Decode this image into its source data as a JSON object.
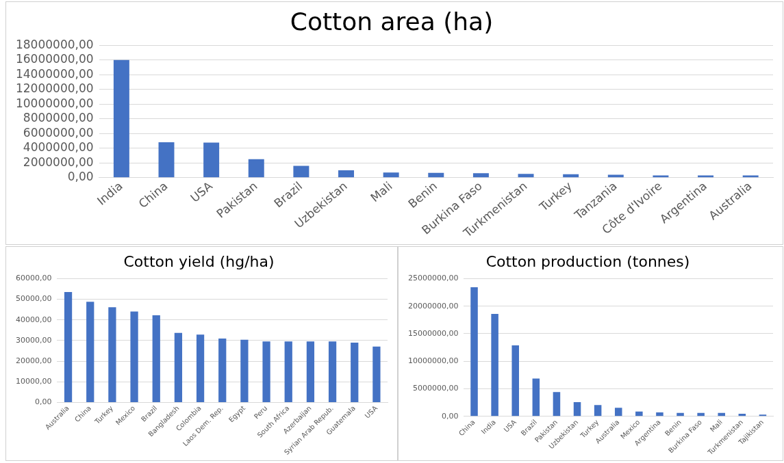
{
  "chart_data": [
    {
      "type": "bar",
      "title": "Cotton area (ha)",
      "categories": [
        "India",
        "China",
        "USA",
        "Pakistan",
        "Brazil",
        "Uzbekistan",
        "Mali",
        "Benin",
        "Burkina Faso",
        "Turkmenistan",
        "Turkey",
        "Tanzania",
        "Côte d'Ivoire",
        "Argentina",
        "Australia"
      ],
      "values": [
        16000000,
        4800000,
        4750000,
        2500000,
        1600000,
        1000000,
        700000,
        650000,
        600000,
        500000,
        450000,
        400000,
        300000,
        300000,
        300000
      ],
      "color": "#4472c4",
      "ylim": [
        0,
        18000000
      ],
      "yticks": [
        {
          "value": 0,
          "label": "0,00"
        },
        {
          "value": 2000000,
          "label": "2000000,00"
        },
        {
          "value": 4000000,
          "label": "4000000,00"
        },
        {
          "value": 6000000,
          "label": "6000000,00"
        },
        {
          "value": 8000000,
          "label": "8000000,00"
        },
        {
          "value": 10000000,
          "label": "10000000,00"
        },
        {
          "value": 12000000,
          "label": "12000000,00"
        },
        {
          "value": 14000000,
          "label": "14000000,00"
        },
        {
          "value": 16000000,
          "label": "16000000,00"
        },
        {
          "value": 18000000,
          "label": "18000000,00"
        }
      ],
      "grid": "y"
    },
    {
      "type": "bar",
      "title": "Cotton yield (hg/ha)",
      "categories": [
        "Australia",
        "China",
        "Turkey",
        "Mexico",
        "Brazil",
        "Bangladesh",
        "Colombia",
        "Laos Dem. Rep.",
        "Egypt",
        "Peru",
        "South Africa",
        "Azerbaijan",
        "Syrian Arab Repub.",
        "Guatemala",
        "USA"
      ],
      "values": [
        53500,
        48800,
        46100,
        44100,
        42200,
        33700,
        32900,
        31000,
        30400,
        29600,
        29600,
        29600,
        29600,
        29000,
        27100
      ],
      "color": "#4472c4",
      "ylim": [
        0,
        60000
      ],
      "yticks": [
        {
          "value": 0,
          "label": "0,00"
        },
        {
          "value": 10000,
          "label": "10000,00"
        },
        {
          "value": 20000,
          "label": "20000,00"
        },
        {
          "value": 30000,
          "label": "30000,00"
        },
        {
          "value": 40000,
          "label": "40000,00"
        },
        {
          "value": 50000,
          "label": "50000,00"
        },
        {
          "value": 60000,
          "label": "60000,00"
        }
      ],
      "grid": "y"
    },
    {
      "type": "bar",
      "title": "Cotton production (tonnes)",
      "categories": [
        "China",
        "India",
        "USA",
        "Brazil",
        "Pakistan",
        "Uzbekistan",
        "Turkey",
        "Australia",
        "Mexico",
        "Argentina",
        "Benin",
        "Burkina Faso",
        "Mali",
        "Turkmenistan",
        "Tajikistan"
      ],
      "values": [
        23450000,
        18600000,
        12900000,
        6860000,
        4430000,
        2580000,
        2060000,
        1550000,
        880000,
        720000,
        620000,
        620000,
        620000,
        460000,
        310000
      ],
      "color": "#4472c4",
      "ylim": [
        0,
        25000000
      ],
      "yticks": [
        {
          "value": 0,
          "label": "0,00"
        },
        {
          "value": 5000000,
          "label": "5000000,00"
        },
        {
          "value": 10000000,
          "label": "10000000,00"
        },
        {
          "value": 15000000,
          "label": "15000000,00"
        },
        {
          "value": 20000000,
          "label": "20000000,00"
        },
        {
          "value": 25000000,
          "label": "25000000,00"
        }
      ],
      "grid": "y"
    }
  ]
}
